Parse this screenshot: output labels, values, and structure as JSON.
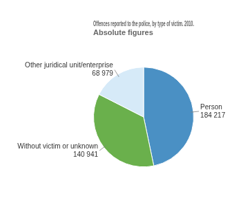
{
  "chart_data": {
    "type": "pie",
    "title": "Offences reported to the police, by type of victim. 2010.\nAbsolute figures",
    "categories": [
      "Person",
      "Without victim or unknown",
      "Other juridical unit/enterprise"
    ],
    "values": [
      184217,
      140941,
      68979
    ],
    "value_labels": [
      "184 217",
      "140 941",
      "68 979"
    ],
    "colors": [
      "#4a90c4",
      "#6ab04c",
      "#d6eaf8"
    ],
    "data_labels": true
  }
}
